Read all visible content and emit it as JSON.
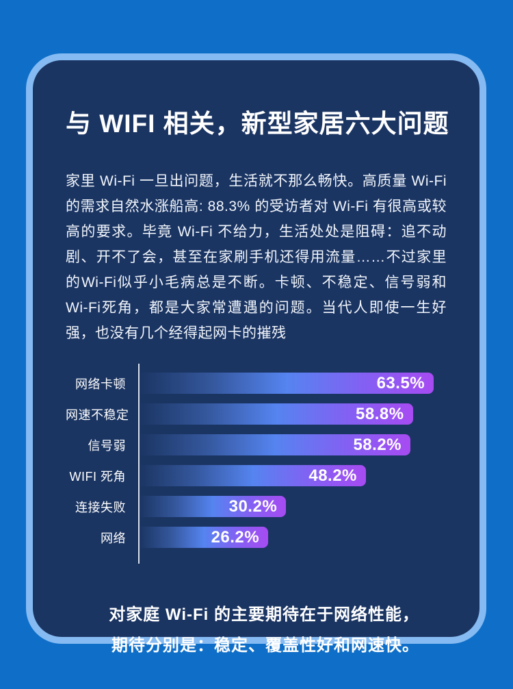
{
  "colors": {
    "page_bg": "#0F6FC8",
    "card_border": "#85BBF2",
    "card_bg": "#1B3563",
    "axis_line": "#D8E0EC",
    "bar_grad_start": "#1B3563",
    "bar_grad_mid": "#5584F0",
    "bar_grad_end": "#A74BF2",
    "text": "#FFFFFF"
  },
  "title": "与 WIFI 相关，新型家居六大问题",
  "intro": "家里 Wi-Fi 一旦出问题，生活就不那么畅快。高质量 Wi-Fi 的需求自然水涨船高: 88.3% 的受访者对 Wi-Fi 有很高或较高的要求。毕竟 Wi-Fi 不给力，生活处处是阻碍：追不动剧、开不了会，甚至在家刷手机还得用流量……不过家里的Wi-Fi似乎小毛病总是不断。卡顿、不稳定、信号弱和Wi-Fi死角，都是大家常遭遇的问题。当代人即使一生好强，也没有几个经得起网卡的摧残",
  "chart_data": {
    "type": "bar",
    "orientation": "horizontal",
    "title": "",
    "xlabel": "",
    "ylabel": "",
    "xlim": [
      0,
      65
    ],
    "grid": false,
    "legend": false,
    "categories": [
      "网络卡顿",
      "网速不稳定",
      "信号弱",
      "WIFI 死角",
      "连接失败",
      "网络"
    ],
    "values": [
      63.5,
      58.8,
      58.2,
      48.2,
      30.2,
      26.2
    ],
    "value_labels": [
      "63.5%",
      "58.8%",
      "58.2%",
      "48.2%",
      "30.2%",
      "26.2%"
    ]
  },
  "footer": {
    "line1": "对家庭 Wi-Fi 的主要期待在于网络性能，",
    "line2": "期待分别是：稳定、覆盖性好和网速快。"
  }
}
